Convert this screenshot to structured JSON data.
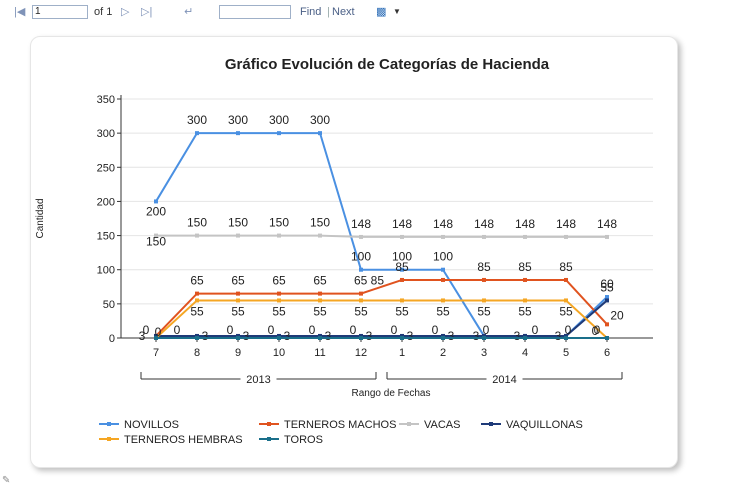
{
  "toolbar": {
    "page_value": "1",
    "page_of": "of 1",
    "find_label": "Find",
    "sep": "|",
    "next_label": "Next"
  },
  "icons": {
    "first": "first-page-icon",
    "prev": "previous-page-icon",
    "next": "next-page-icon",
    "last": "last-page-icon",
    "back": "back-icon",
    "export": "export-save-icon",
    "dropdown": "chevron-down-icon",
    "edit": "pencil-icon"
  },
  "chart_data": {
    "type": "line",
    "title": "Gráfico Evolución de Categorías de Hacienda",
    "xlabel": "Rango de Fechas",
    "ylabel": "Cantidad",
    "ylim": [
      0,
      350
    ],
    "yticks": [
      "0",
      "50",
      "100",
      "150",
      "200",
      "250",
      "300",
      "350"
    ],
    "categories": [
      "7",
      "8",
      "9",
      "10",
      "11",
      "12",
      "1",
      "2",
      "3",
      "4",
      "5",
      "6"
    ],
    "groups": [
      {
        "label": "2013",
        "from": 0,
        "to": 5
      },
      {
        "label": "2014",
        "from": 6,
        "to": 11
      }
    ],
    "series": [
      {
        "name": "NOVILLOS",
        "color": "#4a90e2",
        "values": [
          200,
          300,
          300,
          300,
          300,
          100,
          100,
          100,
          3,
          3,
          3,
          60
        ],
        "labels": [
          "200",
          "300",
          "300",
          "300",
          "300",
          "100",
          "100",
          "100",
          "",
          "",
          "",
          "60"
        ]
      },
      {
        "name": "TERNEROS MACHOS",
        "color": "#e0531f",
        "values": [
          3,
          65,
          65,
          65,
          65,
          65,
          85,
          85,
          85,
          85,
          85,
          20
        ],
        "labels": [
          "",
          "65",
          "65",
          "65",
          "65",
          "65 85",
          "85",
          "",
          "85",
          "85",
          "85",
          "20"
        ]
      },
      {
        "name": "VACAS",
        "color": "#c4c4c4",
        "values": [
          150,
          150,
          150,
          150,
          150,
          148,
          148,
          148,
          148,
          148,
          148,
          148
        ],
        "labels": [
          "150",
          "150",
          "150",
          "150",
          "150",
          "148",
          "148",
          "148",
          "148",
          "148",
          "148",
          "148"
        ]
      },
      {
        "name": "VAQUILLONAS",
        "color": "#1e3a78",
        "values": [
          3,
          3,
          3,
          3,
          3,
          3,
          3,
          3,
          3,
          3,
          3,
          55
        ],
        "labels": [
          "3",
          "3",
          "3",
          "3",
          "3",
          "3",
          "3",
          "3",
          "3",
          "3",
          "3",
          "55"
        ]
      },
      {
        "name": "TERNEROS HEMBRAS",
        "color": "#f5a623",
        "values": [
          0,
          55,
          55,
          55,
          55,
          55,
          55,
          55,
          55,
          55,
          55,
          0
        ],
        "labels": [
          "0",
          "55",
          "55",
          "55",
          "55",
          "55",
          "55",
          "55",
          "55",
          "55",
          "55",
          "0"
        ]
      },
      {
        "name": "TOROS",
        "color": "#1a6f8a",
        "values": [
          0,
          0,
          0,
          0,
          0,
          0,
          0,
          0,
          0,
          0,
          0,
          0
        ],
        "labels": [
          "0",
          "0",
          "0",
          "0",
          "0",
          "0",
          "0",
          "0",
          "0",
          "0",
          "0",
          "0"
        ]
      }
    ],
    "legend": "bottom-left",
    "grid": true
  }
}
